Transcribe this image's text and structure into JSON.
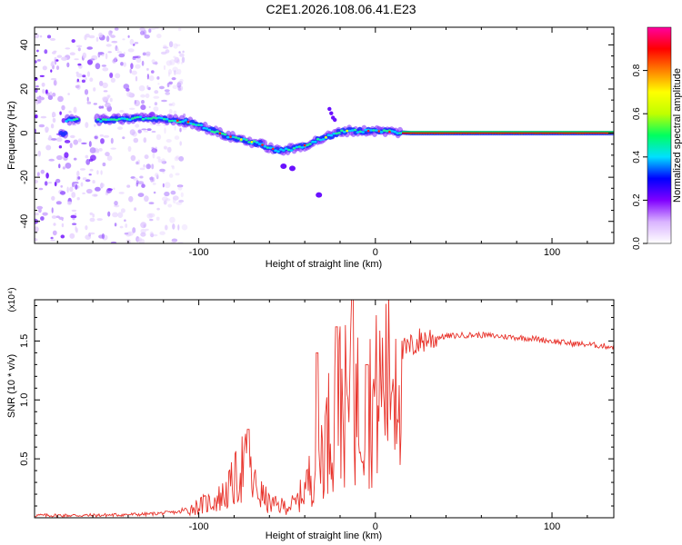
{
  "figure": {
    "title": "C2E1.2026.108.06.41.E23"
  },
  "chart_data": [
    {
      "type": "heatmap",
      "title": "C2E1.2026.108.06.41.E23",
      "xlabel": "Height of straight line (km)",
      "ylabel": "Frequency (Hz)",
      "xlim": [
        -193,
        135
      ],
      "ylim": [
        -50,
        48
      ],
      "xticks": [
        -100,
        0,
        100
      ],
      "yticks": [
        40,
        20,
        0,
        -20,
        -40
      ],
      "xtick_labels": [
        "-100",
        "0",
        "100"
      ],
      "ytick_labels": [
        "40",
        "20",
        "0",
        "-20",
        "-40"
      ],
      "colorbar": {
        "label": "Normalized spectral amplitude",
        "range": [
          0,
          1
        ],
        "ticks": [
          0.0,
          0.2,
          0.4,
          0.6,
          0.8
        ],
        "tick_labels": [
          "0.0",
          "0.2",
          "0.4",
          "0.6",
          "0.8"
        ],
        "colors": [
          "#ffffff",
          "#d9b3ff",
          "#8000ff",
          "#0000ff",
          "#00e0ff",
          "#00ff60",
          "#c0ff00",
          "#ffff00",
          "#ff8000",
          "#ff0000",
          "#ff00a0"
        ]
      },
      "trace": {
        "x": [
          -175,
          -150,
          -130,
          -115,
          -105,
          -95,
          -85,
          -75,
          -65,
          -55,
          -45,
          -38,
          -32,
          -25,
          -18,
          -10,
          0,
          10,
          20,
          40,
          60,
          80,
          100,
          120,
          135
        ],
        "frequency": [
          6,
          6,
          7,
          6,
          5,
          2,
          -1,
          -3,
          -5,
          -8,
          -7,
          -5,
          -3,
          -1,
          1,
          1,
          1,
          0.5,
          0,
          0,
          0,
          0,
          0,
          0,
          0
        ]
      },
      "noise_region": [
        -193,
        -108
      ]
    },
    {
      "type": "line",
      "title": "",
      "xlabel": "Height of straight line (km)",
      "ylabel": "SNR (10 * v/v)",
      "yscale_label": "(x10⁴)",
      "xlim": [
        -193,
        135
      ],
      "ylim": [
        0,
        1.85
      ],
      "xticks": [
        -100,
        0,
        100
      ],
      "yticks": [
        0.5,
        1.0,
        1.5
      ],
      "xtick_labels": [
        "-100",
        "0",
        "100"
      ],
      "ytick_labels": [
        "0.5",
        "1.0",
        "1.5"
      ],
      "color": "#e8322a",
      "series": [
        {
          "name": "SNR",
          "x": [
            -193,
            -160,
            -130,
            -110,
            -100,
            -90,
            -85,
            -80,
            -75,
            -72,
            -70,
            -65,
            -60,
            -55,
            -50,
            -45,
            -40,
            -35,
            -30,
            -25,
            -20,
            -15,
            -10,
            -5,
            0,
            5,
            10,
            15,
            20,
            25,
            30,
            40,
            50,
            60,
            70,
            80,
            90,
            100,
            110,
            120,
            135
          ],
          "y": [
            0.02,
            0.02,
            0.03,
            0.05,
            0.1,
            0.15,
            0.2,
            0.3,
            0.45,
            0.4,
            0.3,
            0.2,
            0.12,
            0.1,
            0.1,
            0.12,
            0.25,
            0.4,
            0.6,
            0.8,
            1.0,
            0.9,
            0.95,
            0.95,
            1.0,
            1.15,
            1.3,
            1.4,
            1.45,
            1.5,
            1.52,
            1.54,
            1.55,
            1.55,
            1.54,
            1.53,
            1.52,
            1.5,
            1.48,
            1.47,
            1.45
          ]
        }
      ],
      "peaks": [
        {
          "x": -72,
          "y": 0.75
        },
        {
          "x": -33,
          "y": 1.4
        },
        {
          "x": -22,
          "y": 1.62
        },
        {
          "x": -13,
          "y": 1.85
        },
        {
          "x": -5,
          "y": 1.3
        }
      ]
    }
  ]
}
